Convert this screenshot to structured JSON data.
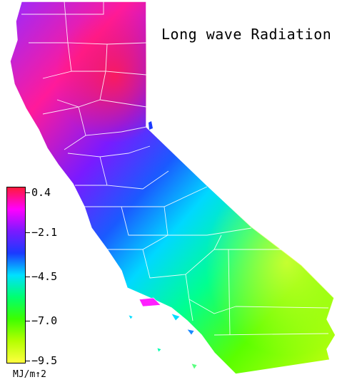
{
  "map": {
    "title": "Long wave Radiation",
    "region": "California",
    "colorbar": {
      "unit": "MJ/m↑2",
      "ticks": [
        "0.4",
        "−2.1",
        "−4.5",
        "−7.0",
        "−9.5"
      ],
      "colors": [
        "#ff1a3a",
        "#ff00ff",
        "#7a1aff",
        "#1a3aff",
        "#00e0ff",
        "#00ff70",
        "#3cff00",
        "#b4ff00",
        "#ffff40"
      ]
    }
  }
}
